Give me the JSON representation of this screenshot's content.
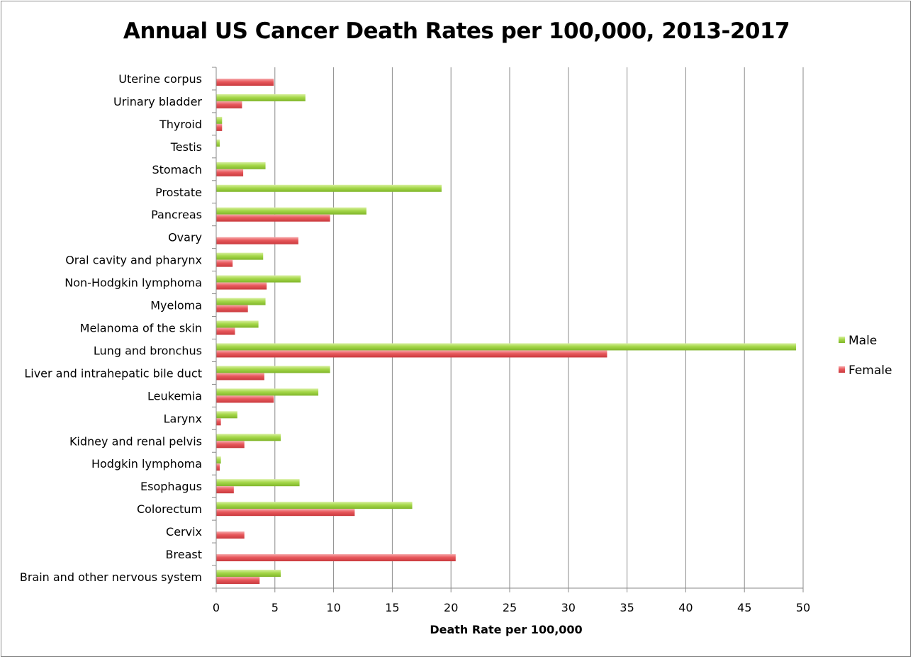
{
  "chart_data": {
    "type": "bar",
    "orientation": "horizontal",
    "title": "Annual US Cancer Death Rates per 100,000, 2013-2017",
    "xlabel": "Death Rate per 100,000",
    "ylabel": "",
    "xlim": [
      0,
      50
    ],
    "x_ticks": [
      0,
      5,
      10,
      15,
      20,
      25,
      30,
      35,
      40,
      45,
      50
    ],
    "grid": "vertical",
    "legend_position": "right",
    "categories": [
      "Uterine corpus",
      "Urinary bladder",
      "Thyroid",
      "Testis",
      "Stomach",
      "Prostate",
      "Pancreas",
      "Ovary",
      "Oral cavity and pharynx",
      "Non-Hodgkin lymphoma",
      "Myeloma",
      "Melanoma of the skin",
      "Lung and bronchus",
      "Liver and intrahepatic bile duct",
      "Leukemia",
      "Larynx",
      "Kidney and renal pelvis",
      "Hodgkin lymphoma",
      "Esophagus",
      "Colorectum",
      "Cervix",
      "Breast",
      "Brain and other nervous system"
    ],
    "series": [
      {
        "name": "Male",
        "color": "#a6d84a",
        "values": [
          null,
          7.6,
          0.5,
          0.3,
          4.2,
          19.2,
          12.8,
          null,
          4.0,
          7.2,
          4.2,
          3.6,
          49.4,
          9.7,
          8.7,
          1.8,
          5.5,
          0.4,
          7.1,
          16.7,
          null,
          null,
          5.5
        ]
      },
      {
        "name": "Female",
        "color": "#e8585c",
        "values": [
          4.9,
          2.2,
          0.5,
          null,
          2.3,
          null,
          9.7,
          7.0,
          1.4,
          4.3,
          2.7,
          1.6,
          33.3,
          4.1,
          4.9,
          0.4,
          2.4,
          0.3,
          1.5,
          11.8,
          2.4,
          20.4,
          3.7
        ]
      }
    ]
  }
}
